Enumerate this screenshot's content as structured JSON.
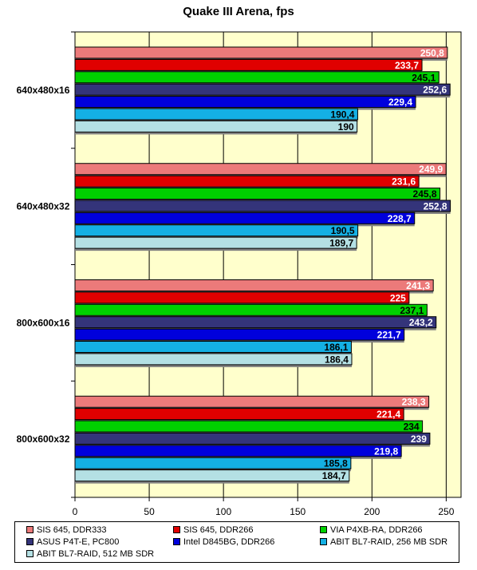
{
  "chart_data": {
    "type": "bar",
    "orientation": "horizontal",
    "title": "Quake III Arena, fps",
    "categories": [
      "640x480x16",
      "640x480x32",
      "800x600x16",
      "800x600x32"
    ],
    "series": [
      {
        "name": "SIS 645, DDR333",
        "color": "#ec7a7a",
        "label_color": "#ffffff",
        "values": [
          250.8,
          249.9,
          241.3,
          238.3
        ],
        "labels": [
          "250,8",
          "249,9",
          "241,3",
          "238,3"
        ]
      },
      {
        "name": "SIS 645, DDR266",
        "color": "#e00000",
        "label_color": "#ffffff",
        "values": [
          233.7,
          231.6,
          225,
          221.4
        ],
        "labels": [
          "233,7",
          "231,6",
          "225",
          "221,4"
        ]
      },
      {
        "name": "VIA P4XB-RA, DDR266",
        "color": "#00d000",
        "label_color": "#000000",
        "values": [
          245.1,
          245.8,
          237.1,
          234
        ],
        "labels": [
          "245,1",
          "245,8",
          "237,1",
          "234"
        ]
      },
      {
        "name": "ASUS P4T-E, PC800",
        "color": "#34347a",
        "label_color": "#ffffff",
        "values": [
          252.6,
          252.8,
          243.2,
          239
        ],
        "labels": [
          "252,6",
          "252,8",
          "243,2",
          "239"
        ]
      },
      {
        "name": "Intel D845BG, DDR266",
        "color": "#0000dc",
        "label_color": "#ffffff",
        "values": [
          229.4,
          228.7,
          221.7,
          219.8
        ],
        "labels": [
          "229,4",
          "228,7",
          "221,7",
          "219,8"
        ]
      },
      {
        "name": "ABIT BL7-RAID, 256 MB SDR",
        "color": "#14b0e4",
        "label_color": "#000000",
        "values": [
          190.4,
          190.5,
          186.1,
          185.8
        ],
        "labels": [
          "190,4",
          "190,5",
          "186,1",
          "185,8"
        ]
      },
      {
        "name": "ABIT BL7-RAID, 512 MB SDR",
        "color": "#b4e0e4",
        "label_color": "#000000",
        "values": [
          190,
          189.7,
          186.4,
          184.7
        ],
        "labels": [
          "190",
          "189,7",
          "186,4",
          "184,7"
        ]
      }
    ],
    "xlim": [
      0,
      260
    ],
    "xticks": [
      0,
      50,
      100,
      150,
      200,
      250
    ],
    "grid": true,
    "plot_background": "#ffffcc",
    "legend_position": "bottom"
  }
}
